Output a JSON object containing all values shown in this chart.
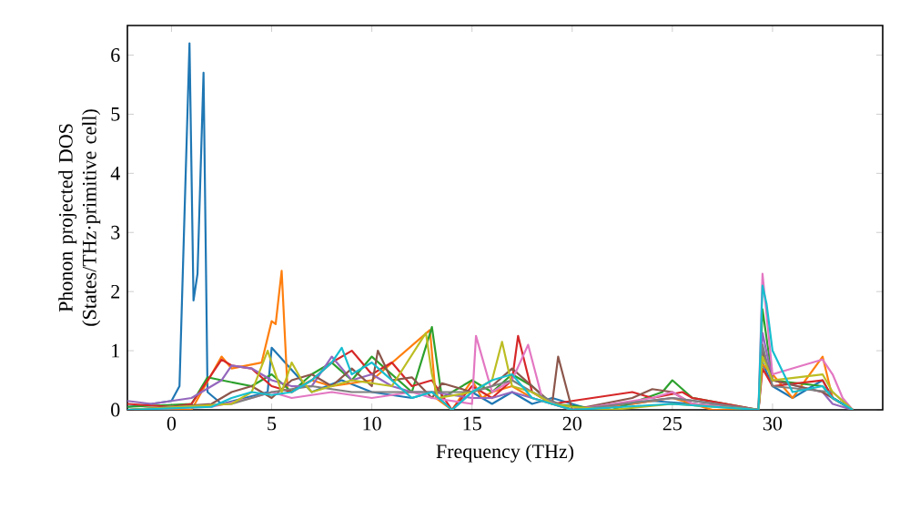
{
  "chart_data": {
    "type": "line",
    "xlabel": "Frequency (THz)",
    "ylabel": "Phonon projected DOS (States/THz·primitive cell)",
    "xlim": [
      -2.2,
      35.5
    ],
    "ylim": [
      0,
      6.5
    ],
    "xticks": [
      0,
      5,
      10,
      15,
      20,
      25,
      30
    ],
    "yticks": [
      0,
      1,
      2,
      3,
      4,
      5,
      6
    ],
    "grid": false,
    "marker": "none",
    "line_style": "solid",
    "series": [
      {
        "color": "#1f77b4",
        "x": [
          -2.2,
          -1,
          0,
          0.4,
          0.9,
          1.1,
          1.3,
          1.6,
          1.8,
          2.5,
          4.8,
          5,
          7,
          8.5,
          10,
          12,
          13,
          14,
          15,
          16,
          17,
          18,
          19,
          21,
          24,
          26,
          29.3,
          29.5,
          30,
          31,
          32.5,
          33,
          34
        ],
        "values": [
          0.05,
          0.1,
          0.15,
          0.4,
          6.2,
          1.85,
          2.3,
          5.7,
          0.3,
          0.1,
          0.3,
          1.05,
          0.3,
          0.5,
          0.3,
          0.2,
          0.3,
          0,
          0.3,
          0.1,
          0.3,
          0.1,
          0.2,
          0,
          0.15,
          0.1,
          0,
          0.8,
          0.4,
          0.2,
          0.5,
          0.2,
          0
        ]
      },
      {
        "color": "#ff7f0e",
        "x": [
          -2.2,
          1,
          2.5,
          3,
          4.5,
          5,
          5.2,
          5.5,
          5.8,
          7,
          8,
          10,
          12.9,
          13.2,
          14,
          15,
          15.5,
          16,
          17,
          18,
          20,
          23,
          25,
          27,
          29.3,
          29.4,
          30,
          31,
          32.5,
          33,
          34
        ],
        "values": [
          0,
          0,
          0.9,
          0.7,
          0.8,
          1.5,
          1.45,
          2.35,
          0.3,
          0.5,
          0.4,
          0.5,
          1.35,
          0.2,
          0,
          0.5,
          0.2,
          0.3,
          0.4,
          0.2,
          0,
          0.1,
          0.2,
          0,
          0,
          0.8,
          0.6,
          0.2,
          0.9,
          0.2,
          0
        ]
      },
      {
        "color": "#2ca02c",
        "x": [
          -2.2,
          1,
          1.8,
          2.5,
          4,
          5,
          6,
          7,
          8,
          9,
          10,
          11,
          12,
          13,
          13.5,
          15,
          16,
          17,
          18,
          19,
          22,
          24.5,
          25,
          26,
          29.3,
          29.5,
          30,
          32.5,
          33,
          34
        ],
        "values": [
          0.05,
          0.1,
          0.55,
          0.5,
          0.4,
          0.6,
          0.3,
          0.6,
          0.8,
          0.5,
          0.9,
          0.6,
          0.3,
          1.4,
          0.2,
          0.5,
          0.3,
          0.6,
          0.4,
          0.1,
          0,
          0.3,
          0.5,
          0.2,
          0,
          1.7,
          0.5,
          0.4,
          0.2,
          0
        ]
      },
      {
        "color": "#d62728",
        "x": [
          -2.2,
          0,
          1,
          2.5,
          3,
          4,
          5,
          6,
          7,
          8,
          9,
          10,
          11,
          12,
          13,
          14,
          15,
          16,
          17,
          17.3,
          18,
          19,
          23,
          24,
          25.5,
          26,
          29.3,
          29.5,
          30,
          32.5,
          33,
          34
        ],
        "values": [
          0.1,
          0.05,
          0.1,
          0.85,
          0.75,
          0.7,
          0.4,
          0.3,
          0.5,
          0.8,
          1.0,
          0.6,
          0.8,
          0.4,
          0.5,
          0,
          0.4,
          0.2,
          0.5,
          1.25,
          0.3,
          0.1,
          0.3,
          0.2,
          0.3,
          0.2,
          0,
          0.7,
          0.4,
          0.5,
          0.2,
          0
        ]
      },
      {
        "color": "#9467bd",
        "x": [
          -2.2,
          -1,
          1,
          2.5,
          3,
          4,
          5,
          6,
          7,
          8,
          9,
          10,
          11,
          12,
          13,
          15,
          16,
          17,
          18,
          20,
          25,
          29.3,
          29.5,
          30,
          32.5,
          33,
          34
        ],
        "values": [
          0.15,
          0.1,
          0.2,
          0.5,
          0.75,
          0.7,
          0.5,
          0.4,
          0.4,
          0.9,
          0.5,
          0.6,
          0.4,
          0.3,
          0.3,
          0.2,
          0.2,
          0.3,
          0.2,
          0,
          0.2,
          0,
          1.3,
          0.5,
          0.3,
          0.1,
          0
        ]
      },
      {
        "color": "#8c564b",
        "x": [
          -2.2,
          2,
          3,
          4,
          5,
          6,
          7,
          8,
          9,
          10,
          10.3,
          11,
          12,
          13,
          13.5,
          15,
          16,
          17,
          18,
          19,
          19.3,
          20,
          23,
          24,
          25,
          26,
          29.3,
          29.5,
          30,
          32.5,
          34
        ],
        "values": [
          0,
          0.1,
          0.3,
          0.4,
          0.2,
          0.5,
          0.6,
          0.4,
          0.7,
          0.4,
          1.0,
          0.5,
          0.55,
          0.2,
          0.45,
          0.3,
          0.4,
          0.7,
          0.4,
          0.1,
          0.9,
          0,
          0.2,
          0.35,
          0.3,
          0.1,
          0,
          1.0,
          0.5,
          0.3,
          0
        ]
      },
      {
        "color": "#e377c2",
        "x": [
          -2.2,
          2,
          4,
          5,
          6,
          8,
          10,
          12,
          13,
          15,
          15.2,
          16,
          17,
          17.8,
          18.5,
          20,
          24,
          25,
          26,
          29.3,
          29.5,
          30,
          32.5,
          33,
          33.5,
          34
        ],
        "values": [
          0,
          0.05,
          0.2,
          0.3,
          0.2,
          0.3,
          0.2,
          0.3,
          0.2,
          0.1,
          1.25,
          0.3,
          0.5,
          1.1,
          0.2,
          0,
          0.2,
          0.3,
          0.1,
          0,
          2.3,
          0.6,
          0.85,
          0.6,
          0.2,
          0
        ]
      },
      {
        "color": "#7f7f7f",
        "x": [
          -2.2,
          3,
          5,
          7,
          9,
          11,
          13,
          15,
          16,
          17,
          18,
          20,
          25,
          29.3,
          29.5,
          30,
          33,
          34
        ],
        "values": [
          0,
          0.1,
          0.3,
          0.4,
          0.3,
          0.3,
          0.3,
          0.3,
          0.4,
          0.5,
          0.3,
          0,
          0.2,
          0,
          1.1,
          0.4,
          0.3,
          0
        ]
      },
      {
        "color": "#bcbd22",
        "x": [
          -2.2,
          3,
          4,
          4.8,
          5.5,
          6,
          6.5,
          7,
          9,
          11,
          12.7,
          13,
          13.3,
          15,
          16,
          16.5,
          17,
          18,
          19,
          20,
          22,
          25,
          29.3,
          29.5,
          30,
          32.5,
          33,
          34
        ],
        "values": [
          0,
          0.1,
          0.3,
          1.0,
          0.3,
          0.8,
          0.5,
          0.3,
          0.5,
          0.4,
          1.3,
          0.6,
          0.2,
          0.3,
          0.5,
          1.15,
          0.4,
          0.3,
          0.1,
          0.05,
          0,
          0.1,
          0,
          0.9,
          0.5,
          0.6,
          0.3,
          0
        ]
      },
      {
        "color": "#17becf",
        "x": [
          -2.2,
          2,
          3,
          4,
          5,
          6,
          7,
          8,
          8.5,
          9,
          10,
          11,
          12,
          13,
          14,
          15,
          16,
          17,
          18,
          20,
          25,
          29.3,
          29.5,
          29.7,
          30,
          31,
          32.5,
          33,
          34
        ],
        "values": [
          0,
          0.05,
          0.2,
          0.3,
          0.25,
          0.3,
          0.5,
          0.8,
          1.05,
          0.6,
          0.8,
          0.5,
          0.2,
          0.3,
          0,
          0.3,
          0.5,
          0.6,
          0.2,
          0,
          0.1,
          0,
          2.1,
          1.8,
          1.0,
          0.3,
          0.4,
          0.2,
          0
        ]
      }
    ]
  }
}
